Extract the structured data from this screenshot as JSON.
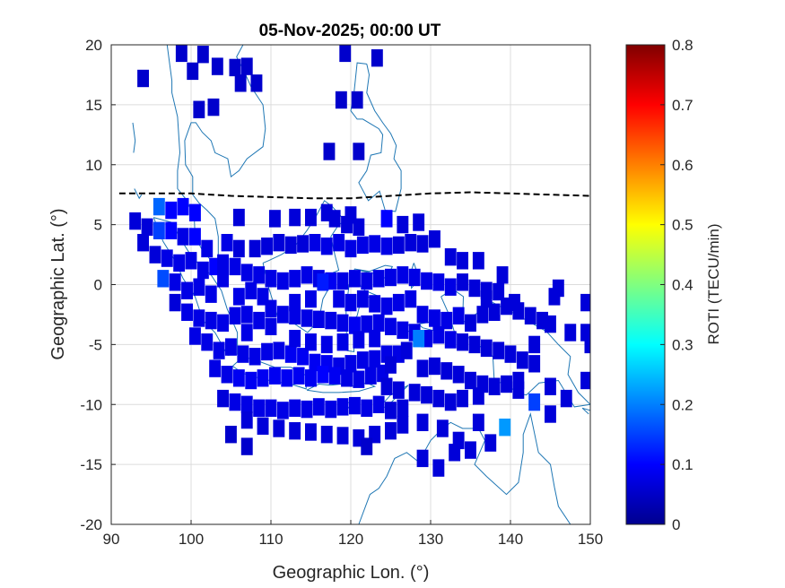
{
  "chart_data": {
    "type": "heatmap",
    "title": "05-Nov-2025; 00:00 UT",
    "xlabel": "Geographic Lon. (°)",
    "ylabel": "Geographic Lat. (°)",
    "xlim": [
      90,
      150
    ],
    "ylim": [
      -20,
      20
    ],
    "xticks": [
      "90",
      "100",
      "110",
      "120",
      "130",
      "140",
      "150"
    ],
    "yticks": [
      "20",
      "15",
      "10",
      "5",
      "0",
      "-5",
      "-10",
      "-15",
      "-20"
    ],
    "grid": true,
    "colorbar": {
      "label": "ROTI (TECU/min)",
      "range": [
        0,
        0.8
      ],
      "ticks": [
        "0.8",
        "0.7",
        "0.6",
        "0.5",
        "0.4",
        "0.3",
        "0.2",
        "0.1",
        "0"
      ],
      "colormap": "jet"
    },
    "magnetic_equator": [
      [
        91,
        7.6
      ],
      [
        95,
        7.6
      ],
      [
        100,
        7.6
      ],
      [
        105,
        7.4
      ],
      [
        110,
        7.3
      ],
      [
        115,
        7.2
      ],
      [
        120,
        7.2
      ],
      [
        125,
        7.4
      ],
      [
        130,
        7.6
      ],
      [
        135,
        7.7
      ],
      [
        140,
        7.6
      ],
      [
        145,
        7.5
      ],
      [
        150,
        7.4
      ]
    ],
    "coastline_color": "#1f77b4",
    "blocks": [
      [
        94,
        17.2,
        0.06
      ],
      [
        98.8,
        19.3,
        0.06
      ],
      [
        101.5,
        19.2,
        0.06
      ],
      [
        100.2,
        17.8,
        0.06
      ],
      [
        103.3,
        18.2,
        0.06
      ],
      [
        105.5,
        18.1,
        0.06
      ],
      [
        107,
        18.2,
        0.06
      ],
      [
        106.2,
        16.8,
        0.06
      ],
      [
        108.2,
        16.8,
        0.06
      ],
      [
        101,
        14.6,
        0.06
      ],
      [
        102.8,
        14.8,
        0.06
      ],
      [
        119.3,
        19.3,
        0.06
      ],
      [
        123.3,
        18.9,
        0.06
      ],
      [
        118.8,
        15.4,
        0.06
      ],
      [
        120.8,
        15.4,
        0.06
      ],
      [
        117.3,
        11.1,
        0.06
      ],
      [
        121,
        11.1,
        0.06
      ],
      [
        96,
        6.5,
        0.18
      ],
      [
        97.5,
        6.2,
        0.1
      ],
      [
        99,
        6.5,
        0.1
      ],
      [
        100.5,
        6,
        0.1
      ],
      [
        93,
        5.3,
        0.07
      ],
      [
        94.5,
        4.8,
        0.07
      ],
      [
        96,
        4.5,
        0.15
      ],
      [
        97.5,
        4.5,
        0.1
      ],
      [
        99,
        4,
        0.08
      ],
      [
        100.5,
        4,
        0.1
      ],
      [
        102,
        3,
        0.08
      ],
      [
        94,
        3.5,
        0.07
      ],
      [
        95.5,
        2.5,
        0.07
      ],
      [
        97,
        2.2,
        0.08
      ],
      [
        98.5,
        1.8,
        0.08
      ],
      [
        100,
        2,
        0.08
      ],
      [
        101.5,
        1.2,
        0.08
      ],
      [
        103,
        1.5,
        0.1
      ],
      [
        104.5,
        3.5,
        0.08
      ],
      [
        106,
        3,
        0.07
      ],
      [
        96.5,
        0.5,
        0.16
      ],
      [
        98,
        0.2,
        0.08
      ],
      [
        99.5,
        -0.5,
        0.08
      ],
      [
        101,
        -0.2,
        0.08
      ],
      [
        102.5,
        -0.8,
        0.08
      ],
      [
        104,
        0.5,
        0.08
      ],
      [
        98,
        -1.5,
        0.07
      ],
      [
        99.5,
        -2.3,
        0.08
      ],
      [
        101,
        -2.8,
        0.08
      ],
      [
        102.5,
        -3,
        0.08
      ],
      [
        104,
        -3.2,
        0.08
      ],
      [
        105.5,
        -2.6,
        0.08
      ],
      [
        107,
        -2.5,
        0.08
      ],
      [
        100.5,
        -4.3,
        0.08
      ],
      [
        102,
        -4.8,
        0.08
      ],
      [
        103.5,
        -5.5,
        0.08
      ],
      [
        105,
        -5.2,
        0.08
      ],
      [
        106.5,
        -5.8,
        0.08
      ],
      [
        108,
        -6,
        0.08
      ],
      [
        109.5,
        -5.6,
        0.08
      ],
      [
        111,
        -5.5,
        0.08
      ],
      [
        112.5,
        -5.8,
        0.09
      ],
      [
        114,
        -6,
        0.09
      ],
      [
        115.5,
        -6.5,
        0.09
      ],
      [
        117,
        -6.6,
        0.09
      ],
      [
        118.5,
        -6.8,
        0.08
      ],
      [
        120,
        -6.6,
        0.08
      ],
      [
        121.5,
        -6.3,
        0.08
      ],
      [
        123,
        -6.2,
        0.08
      ],
      [
        124.5,
        -5.8,
        0.08
      ],
      [
        126,
        -5.8,
        0.08
      ],
      [
        103,
        -7,
        0.08
      ],
      [
        104.5,
        -7.5,
        0.08
      ],
      [
        106,
        -7.8,
        0.09
      ],
      [
        107.5,
        -8,
        0.09
      ],
      [
        109,
        -7.8,
        0.09
      ],
      [
        110.5,
        -7.6,
        0.09
      ],
      [
        112,
        -7.8,
        0.09
      ],
      [
        113.5,
        -7.6,
        0.09
      ],
      [
        115,
        -7.8,
        0.09
      ],
      [
        116.5,
        -7.5,
        0.1
      ],
      [
        118,
        -7.6,
        0.09
      ],
      [
        119.5,
        -7.8,
        0.08
      ],
      [
        121,
        -7.9,
        0.08
      ],
      [
        122.5,
        -7.6,
        0.08
      ],
      [
        124,
        -7.4,
        0.08
      ],
      [
        104,
        -9.5,
        0.07
      ],
      [
        105.5,
        -9.8,
        0.08
      ],
      [
        107,
        -10,
        0.08
      ],
      [
        108.5,
        -10.3,
        0.08
      ],
      [
        110,
        -10.3,
        0.08
      ],
      [
        111.5,
        -10.5,
        0.08
      ],
      [
        113,
        -10.3,
        0.08
      ],
      [
        114.5,
        -10.4,
        0.08
      ],
      [
        116,
        -10.2,
        0.08
      ],
      [
        117.5,
        -10.4,
        0.08
      ],
      [
        119,
        -10.2,
        0.08
      ],
      [
        120.5,
        -10.1,
        0.08
      ],
      [
        122,
        -10.3,
        0.08
      ],
      [
        123.5,
        -10,
        0.08
      ],
      [
        125,
        -10.5,
        0.07
      ],
      [
        126.5,
        -10.3,
        0.07
      ],
      [
        107,
        -11.3,
        0.07
      ],
      [
        109,
        -11.8,
        0.07
      ],
      [
        111,
        -12,
        0.07
      ],
      [
        113,
        -12.2,
        0.07
      ],
      [
        115,
        -12.3,
        0.07
      ],
      [
        117,
        -12.5,
        0.07
      ],
      [
        119,
        -12.6,
        0.07
      ],
      [
        121,
        -12.8,
        0.07
      ],
      [
        123,
        -12.5,
        0.07
      ],
      [
        125,
        -12.2,
        0.07
      ],
      [
        126.5,
        -11.7,
        0.07
      ],
      [
        105,
        -12.5,
        0.06
      ],
      [
        107,
        -13.5,
        0.06
      ],
      [
        122,
        -13.5,
        0.06
      ],
      [
        104,
        1.8,
        0.08
      ],
      [
        105.5,
        1.5,
        0.08
      ],
      [
        107,
        1,
        0.08
      ],
      [
        108.5,
        0.8,
        0.08
      ],
      [
        110,
        0.5,
        0.08
      ],
      [
        111.5,
        0.3,
        0.08
      ],
      [
        113,
        0.5,
        0.08
      ],
      [
        114.5,
        0.8,
        0.08
      ],
      [
        116,
        0.5,
        0.08
      ],
      [
        117.5,
        0.3,
        0.09
      ],
      [
        119,
        0.3,
        0.08
      ],
      [
        120.5,
        0.5,
        0.08
      ],
      [
        122,
        0.3,
        0.08
      ],
      [
        123.5,
        0.5,
        0.08
      ],
      [
        125,
        0.6,
        0.08
      ],
      [
        126.5,
        0.8,
        0.08
      ],
      [
        128,
        0.6,
        0.08
      ],
      [
        129.5,
        0.3,
        0.08
      ],
      [
        131,
        0.2,
        0.08
      ],
      [
        132.5,
        -0.2,
        0.08
      ],
      [
        134,
        0.2,
        0.07
      ],
      [
        135.5,
        -0.3,
        0.07
      ],
      [
        137,
        -0.5,
        0.07
      ],
      [
        138.5,
        -0.6,
        0.07
      ],
      [
        108,
        3,
        0.07
      ],
      [
        109.5,
        3.2,
        0.07
      ],
      [
        111,
        3.5,
        0.07
      ],
      [
        112.5,
        3.3,
        0.07
      ],
      [
        114,
        3.4,
        0.07
      ],
      [
        115.5,
        3.5,
        0.08
      ],
      [
        117,
        3.2,
        0.08
      ],
      [
        118.5,
        3.5,
        0.08
      ],
      [
        120,
        3,
        0.08
      ],
      [
        121.5,
        3.3,
        0.08
      ],
      [
        123,
        3.4,
        0.08
      ],
      [
        124.5,
        3.2,
        0.08
      ],
      [
        126,
        3.3,
        0.07
      ],
      [
        127.5,
        3.5,
        0.07
      ],
      [
        129,
        3.4,
        0.07
      ],
      [
        118,
        5.5,
        0.07
      ],
      [
        119.5,
        5,
        0.07
      ],
      [
        121,
        4.8,
        0.07
      ],
      [
        124.5,
        5.5,
        0.1
      ],
      [
        126.5,
        5,
        0.07
      ],
      [
        128.5,
        5.2,
        0.07
      ],
      [
        130.5,
        3.8,
        0.07
      ],
      [
        132.5,
        2.3,
        0.07
      ],
      [
        134,
        2,
        0.07
      ],
      [
        136,
        2,
        0.07
      ],
      [
        110,
        -2,
        0.08
      ],
      [
        111.5,
        -2.5,
        0.08
      ],
      [
        113,
        -2.6,
        0.08
      ],
      [
        114.5,
        -2.8,
        0.08
      ],
      [
        116,
        -2.9,
        0.08
      ],
      [
        117.5,
        -3,
        0.08
      ],
      [
        119,
        -3.2,
        0.08
      ],
      [
        120.5,
        -3.4,
        0.09
      ],
      [
        122,
        -3.3,
        0.08
      ],
      [
        123.5,
        -3.2,
        0.08
      ],
      [
        125,
        -3.5,
        0.08
      ],
      [
        126.5,
        -3.8,
        0.08
      ],
      [
        128,
        -4,
        0.08
      ],
      [
        129.5,
        -4.5,
        0.08
      ],
      [
        131,
        -4.2,
        0.08
      ],
      [
        132.5,
        -4.6,
        0.08
      ],
      [
        134,
        -4.8,
        0.07
      ],
      [
        135.5,
        -5,
        0.07
      ],
      [
        137,
        -5.3,
        0.07
      ],
      [
        138.5,
        -5.5,
        0.07
      ],
      [
        140,
        -5.8,
        0.07
      ],
      [
        141.5,
        -6.3,
        0.07
      ],
      [
        143,
        -6.6,
        0.07
      ],
      [
        129,
        -2.5,
        0.08
      ],
      [
        130.5,
        -2.8,
        0.08
      ],
      [
        132,
        -3,
        0.08
      ],
      [
        133.5,
        -2.6,
        0.08
      ],
      [
        135,
        -3.2,
        0.07
      ],
      [
        136.5,
        -2.5,
        0.07
      ],
      [
        138,
        -2.3,
        0.07
      ],
      [
        139.5,
        -1.8,
        0.07
      ],
      [
        141,
        -2.2,
        0.07
      ],
      [
        142.5,
        -2.6,
        0.07
      ],
      [
        144,
        -3,
        0.07
      ],
      [
        128.5,
        -4.5,
        0.2
      ],
      [
        118.5,
        -1.2,
        0.08
      ],
      [
        120,
        -1.5,
        0.08
      ],
      [
        121.5,
        -1.2,
        0.08
      ],
      [
        123,
        -1.6,
        0.08
      ],
      [
        124.5,
        -1.8,
        0.08
      ],
      [
        126,
        -1.5,
        0.08
      ],
      [
        127.5,
        -1.2,
        0.08
      ],
      [
        129,
        -7,
        0.07
      ],
      [
        130.5,
        -6.8,
        0.07
      ],
      [
        132,
        -7.2,
        0.07
      ],
      [
        133.5,
        -7.5,
        0.07
      ],
      [
        135,
        -8,
        0.07
      ],
      [
        136.5,
        -8.3,
        0.07
      ],
      [
        138,
        -8.5,
        0.07
      ],
      [
        139.5,
        -8.3,
        0.07
      ],
      [
        141,
        -8,
        0.07
      ],
      [
        128,
        -9,
        0.07
      ],
      [
        129.5,
        -9.2,
        0.07
      ],
      [
        131,
        -9.5,
        0.07
      ],
      [
        132.5,
        -9.8,
        0.07
      ],
      [
        134,
        -9.5,
        0.07
      ],
      [
        136,
        -9.3,
        0.07
      ],
      [
        141,
        -8.8,
        0.07
      ],
      [
        143,
        -9.8,
        0.15
      ],
      [
        145,
        -8.5,
        0.07
      ],
      [
        147,
        -9.5,
        0.07
      ],
      [
        149.5,
        -8,
        0.07
      ],
      [
        145,
        -10.8,
        0.07
      ],
      [
        129,
        -11.5,
        0.07
      ],
      [
        131.5,
        -12,
        0.07
      ],
      [
        133.5,
        -13,
        0.07
      ],
      [
        136,
        -11.5,
        0.07
      ],
      [
        139.3,
        -11.9,
        0.22
      ],
      [
        137.5,
        -13.2,
        0.07
      ],
      [
        133,
        -14,
        0.07
      ],
      [
        135,
        -13.8,
        0.07
      ],
      [
        129,
        -14.5,
        0.07
      ],
      [
        131,
        -15.3,
        0.07
      ],
      [
        146,
        -0.3,
        0.07
      ],
      [
        149.5,
        -1.5,
        0.07
      ],
      [
        149.5,
        -4,
        0.07
      ],
      [
        147.5,
        -4,
        0.07
      ],
      [
        143,
        -5,
        0.07
      ],
      [
        145,
        -3.3,
        0.07
      ],
      [
        140.5,
        -1.5,
        0.07
      ],
      [
        137,
        -1.2,
        0.07
      ],
      [
        139,
        0.8,
        0.07
      ],
      [
        145.5,
        -1,
        0.07
      ],
      [
        150,
        -5,
        0.07
      ],
      [
        110.5,
        5.5,
        0.07
      ],
      [
        113,
        5.6,
        0.07
      ],
      [
        106,
        5.6,
        0.07
      ],
      [
        115,
        5.6,
        0.07
      ],
      [
        117,
        6,
        0.07
      ],
      [
        120,
        5.8,
        0.07
      ],
      [
        113,
        -4.5,
        0.08
      ],
      [
        115,
        -4.8,
        0.08
      ],
      [
        117,
        -5,
        0.08
      ],
      [
        119,
        -4.8,
        0.08
      ],
      [
        121,
        -4.6,
        0.08
      ],
      [
        123,
        -4.5,
        0.08
      ],
      [
        124.5,
        -8.5,
        0.07
      ],
      [
        126,
        -8.8,
        0.07
      ],
      [
        116.5,
        0.2,
        0.12
      ],
      [
        113,
        -1.5,
        0.08
      ],
      [
        115,
        -1.2,
        0.08
      ],
      [
        110,
        -3.5,
        0.08
      ],
      [
        108.5,
        -3,
        0.08
      ],
      [
        107,
        -4,
        0.08
      ],
      [
        125,
        -6.7,
        0.07
      ],
      [
        127,
        -5.5,
        0.07
      ],
      [
        106,
        -1,
        0.08
      ],
      [
        107.5,
        -0.5,
        0.08
      ],
      [
        109,
        -1,
        0.08
      ]
    ]
  }
}
